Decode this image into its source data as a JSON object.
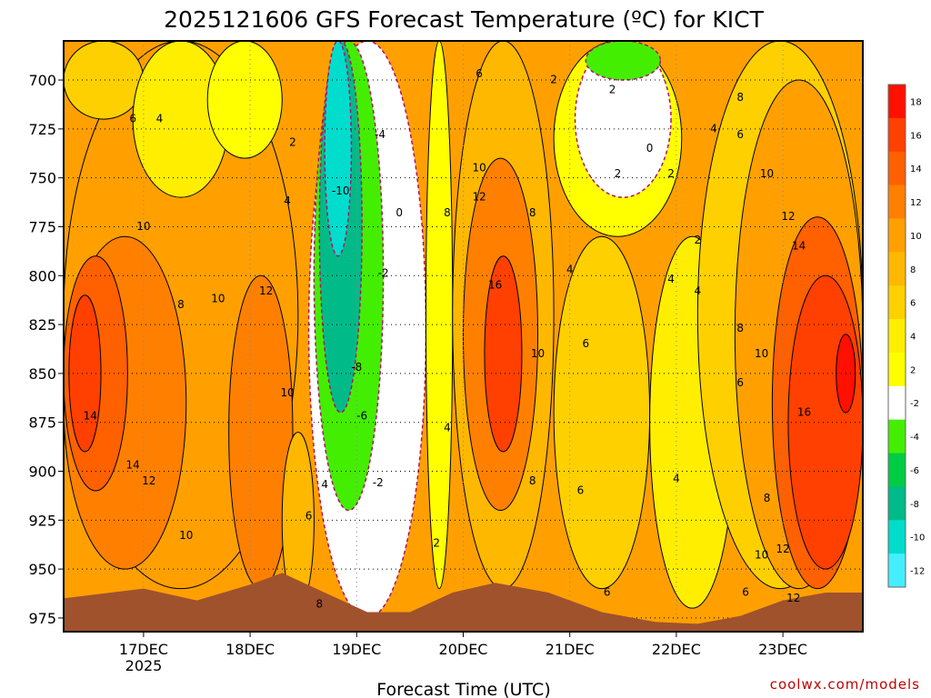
{
  "chart_data": {
    "type": "contour",
    "title": "2025121606 GFS Forecast Temperature (ºC) for KICT",
    "xlabel": "Forecast Time (UTC)",
    "ylabel": "",
    "y_ticks": [
      700,
      725,
      750,
      775,
      800,
      825,
      850,
      875,
      900,
      925,
      950,
      975
    ],
    "x_ticks": [
      "17DEC",
      "18DEC",
      "19DEC",
      "20DEC",
      "21DEC",
      "22DEC",
      "23DEC"
    ],
    "x_tick_year": "2025",
    "y_range": [
      680,
      982
    ],
    "x_range_days": [
      16.25,
      23.75
    ],
    "colorbar": {
      "levels": [
        18,
        16,
        14,
        12,
        10,
        8,
        6,
        4,
        2,
        -2,
        -4,
        -6,
        -8,
        -10,
        -12
      ],
      "colors": [
        "#ff1000",
        "#ff4000",
        "#ff6000",
        "#ff8000",
        "#ffa000",
        "#ffb800",
        "#ffd000",
        "#ffee00",
        "#ffff00",
        "#ffffff",
        "#44ee00",
        "#00cc44",
        "#00bb88",
        "#00ddcc",
        "#44eeff"
      ]
    },
    "regions": [
      {
        "value": 10,
        "x0": 16.25,
        "x1": 18.45,
        "p0": 680,
        "p1": 960
      },
      {
        "value": 6,
        "x0": 16.25,
        "x1": 17.0,
        "p0": 680,
        "p1": 720
      },
      {
        "value": 4,
        "x0": 16.9,
        "x1": 17.8,
        "p0": 680,
        "p1": 760
      },
      {
        "value": 2,
        "x0": 17.6,
        "x1": 18.3,
        "p0": 680,
        "p1": 740
      },
      {
        "value": 12,
        "x0": 16.25,
        "x1": 17.4,
        "p0": 780,
        "p1": 950
      },
      {
        "value": 14,
        "x0": 16.25,
        "x1": 16.85,
        "p0": 790,
        "p1": 910
      },
      {
        "value": 16,
        "x0": 16.3,
        "x1": 16.6,
        "p0": 810,
        "p1": 890
      },
      {
        "value": 12,
        "x0": 17.8,
        "x1": 18.4,
        "p0": 800,
        "p1": 960
      },
      {
        "value": 8,
        "x0": 18.3,
        "x1": 18.6,
        "p0": 880,
        "p1": 970
      },
      {
        "value": -2,
        "x0": 18.55,
        "x1": 19.65,
        "p0": 680,
        "p1": 975
      },
      {
        "value": -4,
        "x0": 18.6,
        "x1": 19.25,
        "p0": 680,
        "p1": 920
      },
      {
        "value": -8,
        "x0": 18.65,
        "x1": 19.05,
        "p0": 680,
        "p1": 870
      },
      {
        "value": -10,
        "x0": 18.7,
        "x1": 18.95,
        "p0": 680,
        "p1": 790
      },
      {
        "value": 2,
        "x0": 19.65,
        "x1": 19.9,
        "p0": 680,
        "p1": 960
      },
      {
        "value": 8,
        "x0": 19.9,
        "x1": 20.85,
        "p0": 680,
        "p1": 960
      },
      {
        "value": 12,
        "x0": 20.0,
        "x1": 20.7,
        "p0": 740,
        "p1": 920
      },
      {
        "value": 16,
        "x0": 20.2,
        "x1": 20.55,
        "p0": 790,
        "p1": 890
      },
      {
        "value": 6,
        "x0": 20.85,
        "x1": 21.75,
        "p0": 780,
        "p1": 960
      },
      {
        "value": 2,
        "x0": 20.85,
        "x1": 22.05,
        "p0": 680,
        "p1": 780
      },
      {
        "value": -2,
        "x0": 21.05,
        "x1": 21.95,
        "p0": 680,
        "p1": 760
      },
      {
        "value": -4,
        "x0": 21.15,
        "x1": 21.85,
        "p0": 680,
        "p1": 700
      },
      {
        "value": 4,
        "x0": 21.75,
        "x1": 22.55,
        "p0": 780,
        "p1": 970
      },
      {
        "value": 6,
        "x0": 22.2,
        "x1": 23.75,
        "p0": 680,
        "p1": 960
      },
      {
        "value": 10,
        "x0": 22.55,
        "x1": 23.75,
        "p0": 700,
        "p1": 960
      },
      {
        "value": 14,
        "x0": 22.9,
        "x1": 23.75,
        "p0": 770,
        "p1": 960
      },
      {
        "value": 16,
        "x0": 23.05,
        "x1": 23.75,
        "p0": 800,
        "p1": 950
      },
      {
        "value": 18,
        "x0": 23.5,
        "x1": 23.68,
        "p0": 830,
        "p1": 870
      }
    ],
    "contour_labels": [
      {
        "text": "6",
        "x": 16.9,
        "p": 720
      },
      {
        "text": "4",
        "x": 17.15,
        "p": 720
      },
      {
        "text": "10",
        "x": 17.0,
        "p": 775
      },
      {
        "text": "8",
        "x": 17.35,
        "p": 815
      },
      {
        "text": "10",
        "x": 17.7,
        "p": 812
      },
      {
        "text": "12",
        "x": 18.15,
        "p": 808
      },
      {
        "text": "14",
        "x": 16.5,
        "p": 872
      },
      {
        "text": "14",
        "x": 16.9,
        "p": 897
      },
      {
        "text": "12",
        "x": 17.05,
        "p": 905
      },
      {
        "text": "10",
        "x": 17.4,
        "p": 933
      },
      {
        "text": "10",
        "x": 18.35,
        "p": 860
      },
      {
        "text": "2",
        "x": 18.4,
        "p": 732
      },
      {
        "text": "4",
        "x": 18.35,
        "p": 762
      },
      {
        "text": "4",
        "x": 18.7,
        "p": 907
      },
      {
        "text": "6",
        "x": 18.55,
        "p": 923
      },
      {
        "text": "8",
        "x": 18.65,
        "p": 968
      },
      {
        "text": "-10",
        "x": 18.85,
        "p": 757
      },
      {
        "text": "-4",
        "x": 19.22,
        "p": 728
      },
      {
        "text": "-2",
        "x": 19.25,
        "p": 799
      },
      {
        "text": "-8",
        "x": 19.0,
        "p": 847
      },
      {
        "text": "-6",
        "x": 19.05,
        "p": 872
      },
      {
        "text": "-2",
        "x": 19.2,
        "p": 906
      },
      {
        "text": "0",
        "x": 19.4,
        "p": 768
      },
      {
        "text": "2",
        "x": 19.75,
        "p": 937
      },
      {
        "text": "4",
        "x": 19.85,
        "p": 878
      },
      {
        "text": "8",
        "x": 19.85,
        "p": 768
      },
      {
        "text": "6",
        "x": 20.15,
        "p": 697
      },
      {
        "text": "10",
        "x": 20.15,
        "p": 745
      },
      {
        "text": "12",
        "x": 20.15,
        "p": 760
      },
      {
        "text": "8",
        "x": 20.65,
        "p": 768
      },
      {
        "text": "16",
        "x": 20.3,
        "p": 805
      },
      {
        "text": "10",
        "x": 20.7,
        "p": 840
      },
      {
        "text": "8",
        "x": 20.65,
        "p": 905
      },
      {
        "text": "4",
        "x": 21.0,
        "p": 797
      },
      {
        "text": "6",
        "x": 21.15,
        "p": 835
      },
      {
        "text": "6",
        "x": 21.1,
        "p": 910
      },
      {
        "text": "6",
        "x": 21.35,
        "p": 962
      },
      {
        "text": "2",
        "x": 20.85,
        "p": 700
      },
      {
        "text": "2",
        "x": 21.4,
        "p": 705
      },
      {
        "text": "2",
        "x": 21.45,
        "p": 748
      },
      {
        "text": "0",
        "x": 21.75,
        "p": 735
      },
      {
        "text": "2",
        "x": 21.95,
        "p": 748
      },
      {
        "text": "2",
        "x": 22.2,
        "p": 782
      },
      {
        "text": "4",
        "x": 21.95,
        "p": 802
      },
      {
        "text": "4",
        "x": 22.2,
        "p": 808
      },
      {
        "text": "4",
        "x": 22.35,
        "p": 725
      },
      {
        "text": "6",
        "x": 22.6,
        "p": 728
      },
      {
        "text": "8",
        "x": 22.6,
        "p": 709
      },
      {
        "text": "10",
        "x": 22.85,
        "p": 748
      },
      {
        "text": "12",
        "x": 23.05,
        "p": 770
      },
      {
        "text": "14",
        "x": 23.15,
        "p": 785
      },
      {
        "text": "8",
        "x": 22.6,
        "p": 827
      },
      {
        "text": "10",
        "x": 22.8,
        "p": 840
      },
      {
        "text": "6",
        "x": 22.6,
        "p": 855
      },
      {
        "text": "16",
        "x": 23.2,
        "p": 870
      },
      {
        "text": "4",
        "x": 22.0,
        "p": 904
      },
      {
        "text": "8",
        "x": 22.85,
        "p": 914
      },
      {
        "text": "10",
        "x": 22.8,
        "p": 943
      },
      {
        "text": "12",
        "x": 23.0,
        "p": 940
      },
      {
        "text": "6",
        "x": 22.65,
        "p": 962
      },
      {
        "text": "12",
        "x": 23.1,
        "p": 965
      }
    ],
    "terrain_profile": [
      {
        "x": 16.25,
        "p": 965
      },
      {
        "x": 17.0,
        "p": 960
      },
      {
        "x": 17.5,
        "p": 966
      },
      {
        "x": 18.0,
        "p": 958
      },
      {
        "x": 18.3,
        "p": 952
      },
      {
        "x": 18.7,
        "p": 962
      },
      {
        "x": 19.1,
        "p": 972
      },
      {
        "x": 19.5,
        "p": 972
      },
      {
        "x": 19.9,
        "p": 962
      },
      {
        "x": 20.3,
        "p": 957
      },
      {
        "x": 20.8,
        "p": 962
      },
      {
        "x": 21.3,
        "p": 972
      },
      {
        "x": 21.8,
        "p": 977
      },
      {
        "x": 22.2,
        "p": 978
      },
      {
        "x": 22.6,
        "p": 974
      },
      {
        "x": 23.0,
        "p": 966
      },
      {
        "x": 23.4,
        "p": 962
      },
      {
        "x": 23.75,
        "p": 962
      }
    ]
  },
  "credit": "coolwx.com/models"
}
